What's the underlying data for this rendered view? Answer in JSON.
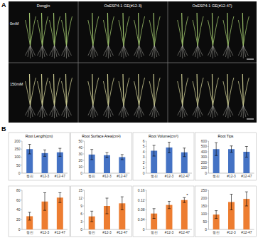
{
  "panel_a": {
    "label": "A",
    "columns": [
      "Dongjin",
      "OsESP4-1 GE(#12-3)",
      "OsESP4-1 GE(#12-47)"
    ],
    "rows": [
      "0mM",
      "150mM"
    ]
  },
  "panel_b": {
    "label": "B"
  },
  "chart_data": [
    {
      "type": "bar",
      "title": "Root Length(cm)",
      "categories": [
        "동진",
        "#12-3",
        "#12-47"
      ],
      "values": [
        150,
        125,
        130
      ],
      "errors": [
        30,
        20,
        25
      ],
      "color": "#4472c4",
      "ylim": [
        0,
        200
      ],
      "yticks": [
        0,
        50,
        100,
        150,
        200
      ]
    },
    {
      "type": "bar",
      "title": "Root Surface Area(cm²)",
      "categories": [
        "동진",
        "#12-3",
        "#12-47"
      ],
      "values": [
        29,
        28,
        25
      ],
      "errors": [
        8,
        4,
        4
      ],
      "color": "#4472c4",
      "ylim": [
        0,
        50
      ],
      "yticks": [
        0,
        10,
        20,
        30,
        40,
        50
      ]
    },
    {
      "type": "bar",
      "title": "Root Volume(cm³)",
      "categories": [
        "동진",
        "#12-3",
        "#12-47"
      ],
      "values": [
        4.2,
        4.8,
        3.9
      ],
      "errors": [
        1,
        1,
        0.8
      ],
      "color": "#4472c4",
      "ylim": [
        0,
        6
      ],
      "yticks": [
        0,
        1,
        2,
        3,
        4,
        5,
        6
      ]
    },
    {
      "type": "bar",
      "title": "Root Tips",
      "categories": [
        "동진",
        "#12-3",
        "#12-47"
      ],
      "values": [
        450,
        450,
        400
      ],
      "errors": [
        120,
        60,
        100
      ],
      "color": "#4472c4",
      "ylim": [
        0,
        600
      ],
      "yticks": [
        0,
        100,
        200,
        300,
        400,
        500,
        600
      ]
    },
    {
      "type": "bar",
      "categories": [
        "동진",
        "#12-3",
        "#12-47"
      ],
      "values": [
        27,
        57,
        65
      ],
      "errors": [
        8,
        18,
        10
      ],
      "color": "#ed7d31",
      "ylim": [
        0,
        80
      ],
      "yticks": [
        0,
        20,
        40,
        60,
        80
      ]
    },
    {
      "type": "bar",
      "categories": [
        "동진",
        "#12-3",
        "#12-47"
      ],
      "values": [
        5,
        9,
        10
      ],
      "errors": [
        2,
        3,
        2.5
      ],
      "color": "#ed7d31",
      "ylim": [
        0,
        15
      ],
      "yticks": [
        0,
        3,
        6,
        9,
        12,
        15
      ]
    },
    {
      "type": "bar",
      "categories": [
        "동진",
        "#12-3",
        "#12-47"
      ],
      "values": [
        0.065,
        0.1,
        0.12
      ],
      "errors": [
        0.02,
        0.015,
        0.01
      ],
      "color": "#ed7d31",
      "ylim": [
        0,
        0.16
      ],
      "yticks": [
        0,
        0.04,
        0.08,
        0.12,
        0.16
      ],
      "annotation": "*"
    },
    {
      "type": "bar",
      "categories": [
        "동진",
        "#12-3",
        "#12-47"
      ],
      "values": [
        95,
        175,
        195
      ],
      "errors": [
        25,
        50,
        45
      ],
      "color": "#ed7d31",
      "ylim": [
        0,
        250
      ],
      "yticks": [
        0,
        50,
        100,
        150,
        200,
        250
      ]
    }
  ]
}
